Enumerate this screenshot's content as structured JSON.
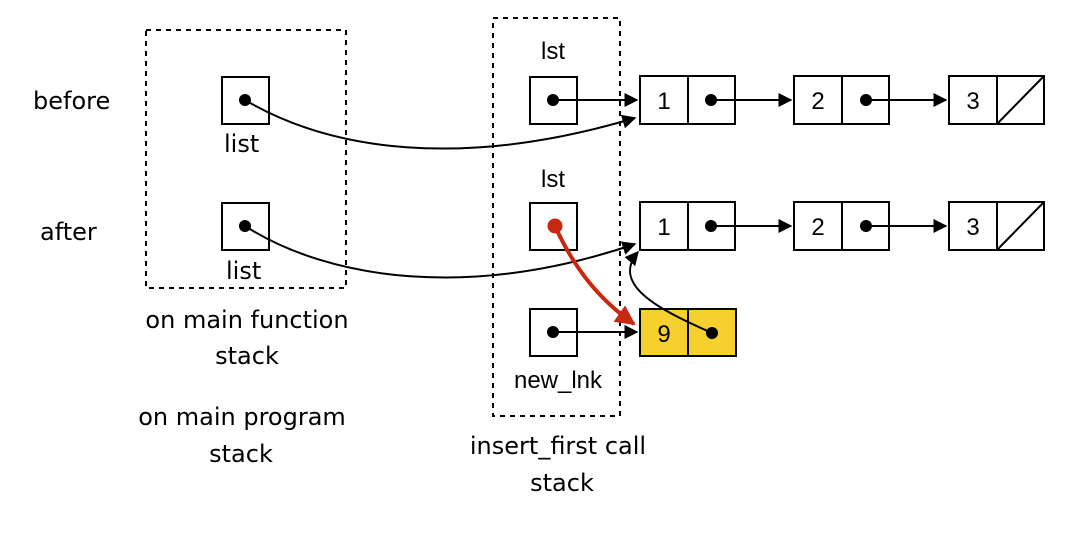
{
  "rows": {
    "before": "before",
    "after": "after"
  },
  "main_frame": {
    "var_before": "list",
    "var_after": "list",
    "caption_line1": "on main function",
    "caption_line2": "stack",
    "program_line1": "on main program",
    "program_line2": "stack"
  },
  "call_frame": {
    "var_before": "lst",
    "var_after": "lst",
    "var_new": "new_lnk",
    "caption_line1": "insert_first call",
    "caption_line2": "stack"
  },
  "list_before": [
    "1",
    "2",
    "3"
  ],
  "list_after": [
    "1",
    "2",
    "3"
  ],
  "new_node": "9",
  "colors": {
    "highlight": "#f5d02f",
    "changed_pointer": "#c8280f"
  }
}
